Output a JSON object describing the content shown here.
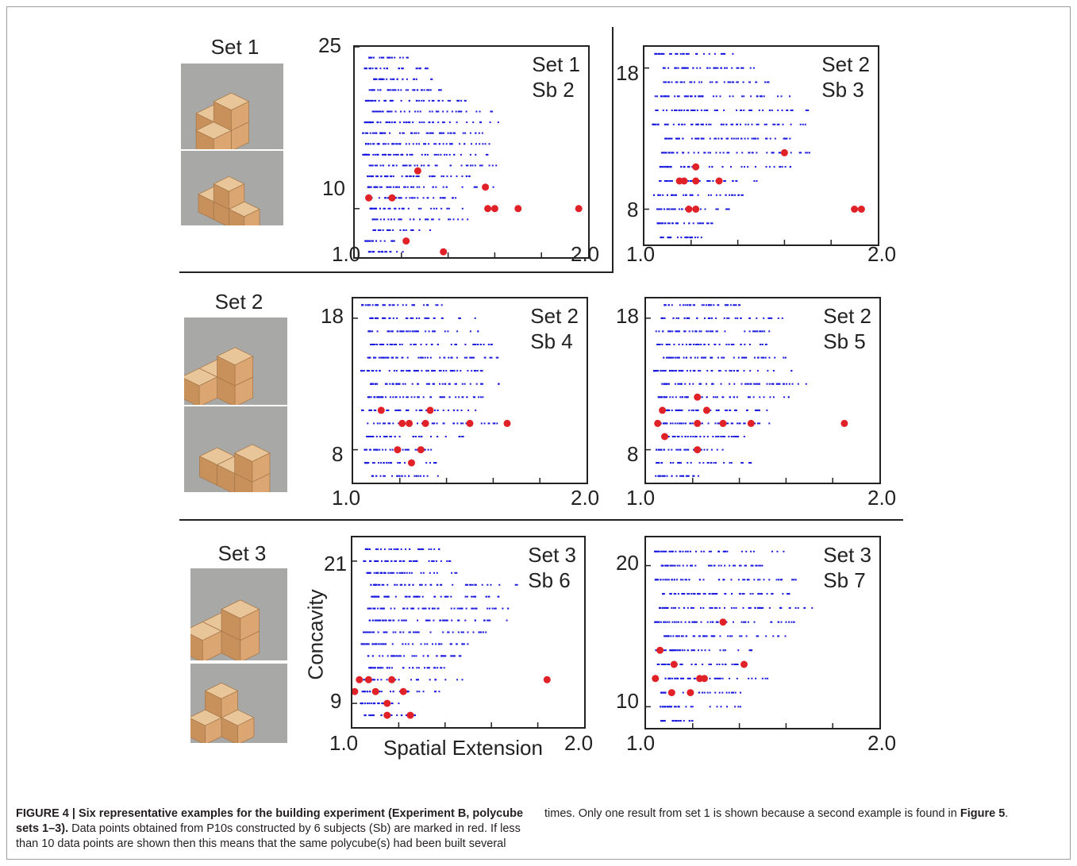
{
  "figure": {
    "row_labels": [
      "Set 1",
      "Set 2",
      "Set 3"
    ],
    "x_axis_label": "Spatial Extension",
    "y_axis_label": "Concavity",
    "colors": {
      "distribution": "#1a1adf",
      "subject": "#e02228"
    }
  },
  "chart_data": [
    {
      "type": "scatter",
      "title": [
        "Set 1",
        "Sb 2"
      ],
      "xlim": [
        1.0,
        2.0
      ],
      "ylim": [
        5.5,
        25
      ],
      "x_ticks": [
        "1.0",
        "2.0"
      ],
      "y_ticks": [
        "25",
        "10"
      ],
      "subject_points": [
        [
          1.06,
          11
        ],
        [
          1.16,
          11
        ],
        [
          1.22,
          7
        ],
        [
          1.27,
          13.5
        ],
        [
          1.38,
          6
        ],
        [
          1.56,
          12
        ],
        [
          1.57,
          10
        ],
        [
          1.6,
          10
        ],
        [
          1.7,
          10
        ],
        [
          1.96,
          10
        ]
      ]
    },
    {
      "type": "scatter",
      "title": [
        "Set 2",
        "Sb 3"
      ],
      "xlim": [
        1.0,
        2.0
      ],
      "ylim": [
        5.5,
        19.5
      ],
      "x_ticks": [
        "1.0",
        "2.0"
      ],
      "y_ticks": [
        "18",
        "8"
      ],
      "subject_points": [
        [
          1.15,
          10
        ],
        [
          1.17,
          10
        ],
        [
          1.19,
          8
        ],
        [
          1.22,
          8
        ],
        [
          1.22,
          11
        ],
        [
          1.22,
          10
        ],
        [
          1.32,
          10
        ],
        [
          1.6,
          12
        ],
        [
          1.9,
          8
        ],
        [
          1.93,
          8
        ]
      ]
    },
    {
      "type": "scatter",
      "title": [
        "Set 2",
        "Sb 4"
      ],
      "xlim": [
        1.0,
        2.0
      ],
      "ylim": [
        5.5,
        19.5
      ],
      "x_ticks": [
        "1.0",
        "2.0"
      ],
      "y_ticks": [
        "18",
        "8"
      ],
      "subject_points": [
        [
          1.12,
          11
        ],
        [
          1.19,
          8
        ],
        [
          1.21,
          10
        ],
        [
          1.24,
          10
        ],
        [
          1.25,
          7
        ],
        [
          1.29,
          8
        ],
        [
          1.31,
          10
        ],
        [
          1.33,
          11
        ],
        [
          1.5,
          10
        ],
        [
          1.66,
          10
        ]
      ]
    },
    {
      "type": "scatter",
      "title": [
        "Set 2",
        "Sb 5"
      ],
      "xlim": [
        1.0,
        2.0
      ],
      "ylim": [
        5.5,
        19.5
      ],
      "x_ticks": [
        "1.0",
        "2.0"
      ],
      "y_ticks": [
        "18",
        "8"
      ],
      "subject_points": [
        [
          1.05,
          10
        ],
        [
          1.07,
          11
        ],
        [
          1.08,
          9
        ],
        [
          1.22,
          12
        ],
        [
          1.22,
          10
        ],
        [
          1.22,
          8
        ],
        [
          1.26,
          11
        ],
        [
          1.33,
          10
        ],
        [
          1.45,
          10
        ],
        [
          1.85,
          10
        ]
      ]
    },
    {
      "type": "scatter",
      "title": [
        "Set 3",
        "Sb 6"
      ],
      "xlim": [
        1.0,
        2.0
      ],
      "ylim": [
        7,
        23
      ],
      "x_ticks": [
        "1.0",
        "2.0"
      ],
      "y_ticks": [
        "21",
        "9"
      ],
      "subject_points": [
        [
          1.01,
          10
        ],
        [
          1.03,
          11
        ],
        [
          1.07,
          11
        ],
        [
          1.1,
          10
        ],
        [
          1.15,
          9
        ],
        [
          1.15,
          8
        ],
        [
          1.17,
          11
        ],
        [
          1.22,
          10
        ],
        [
          1.25,
          8
        ],
        [
          1.84,
          11
        ]
      ]
    },
    {
      "type": "scatter",
      "title": [
        "Set 3",
        "Sb 7"
      ],
      "xlim": [
        1.0,
        2.0
      ],
      "ylim": [
        8.5,
        22
      ],
      "x_ticks": [
        "1.0",
        "2.0"
      ],
      "y_ticks": [
        "20",
        "10"
      ],
      "subject_points": [
        [
          1.04,
          12
        ],
        [
          1.06,
          14
        ],
        [
          1.11,
          11
        ],
        [
          1.12,
          13
        ],
        [
          1.19,
          11
        ],
        [
          1.23,
          12
        ],
        [
          1.25,
          12
        ],
        [
          1.33,
          16
        ],
        [
          1.42,
          13
        ]
      ]
    }
  ],
  "caption": {
    "title": "FIGURE 4 | Six representative examples for the building experiment (Experiment B, polycube sets 1–3).",
    "body_1": " Data points obtained from P10s constructed by 6 subjects (Sb) are marked in red. If less than 10 data points are shown then this means that the same polycube(s) had been built several times. Only one result from set 1 is shown because a second example is found in ",
    "figure_ref": "Figure 5",
    "body_2": "."
  }
}
